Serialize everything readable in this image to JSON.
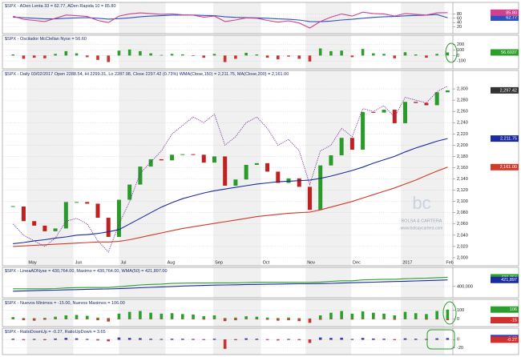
{
  "watermark": {
    "logo": "bc",
    "name": "BOLSA & CARTERA",
    "url": "www.bolsaycartera.com"
  },
  "chart_data": [
    {
      "type": "line",
      "title": "$SPX - ADen Lenta 33 = 62.77, ADen Rapida 10 = 85.80",
      "ylim": [
        0,
        100
      ],
      "yticks": [
        20,
        40,
        60,
        80
      ],
      "grid": true,
      "series": [
        {
          "kind": "line",
          "color": "#3050c0",
          "last_label": "62.77",
          "values": [
            65,
            63,
            60,
            57,
            57,
            60,
            62,
            63,
            60,
            56,
            58,
            62,
            67,
            70,
            72,
            74,
            75,
            75,
            73,
            72,
            67,
            64,
            63,
            62,
            60,
            57,
            55,
            52,
            45,
            44,
            47,
            52,
            55,
            60,
            64,
            67,
            68,
            71,
            73,
            74,
            77,
            62.77
          ]
        },
        {
          "kind": "line",
          "color": "#d04090",
          "last_label": "85.80",
          "values": [
            70,
            55,
            50,
            45,
            60,
            75,
            72,
            68,
            50,
            40,
            70,
            80,
            85,
            82,
            78,
            80,
            76,
            74,
            65,
            70,
            45,
            52,
            62,
            60,
            50,
            42,
            48,
            38,
            15,
            45,
            65,
            80,
            70,
            88,
            82,
            80,
            70,
            82,
            78,
            75,
            85,
            85.8
          ]
        }
      ]
    },
    {
      "type": "bar",
      "title": "$SPX - Oscilador McClellan Nyse = 56.60",
      "ylim": [
        -200,
        240
      ],
      "yticks": [
        -100,
        0,
        100,
        200
      ],
      "grid": true,
      "series": [
        {
          "kind": "bar",
          "color": "#2aa02a",
          "neg_color": "#d03030",
          "last_label": "56.6037",
          "values": [
            20,
            -60,
            -40,
            -50,
            30,
            80,
            40,
            -30,
            -80,
            -120,
            90,
            110,
            80,
            40,
            10,
            30,
            20,
            -10,
            -40,
            30,
            -120,
            -60,
            50,
            20,
            -40,
            -70,
            -20,
            -60,
            -110,
            130,
            80,
            90,
            -30,
            120,
            40,
            30,
            -50,
            60,
            20,
            -40,
            30,
            56.6
          ]
        }
      ]
    },
    {
      "type": "candlestick",
      "title": "$SPX - Daily 03/02/2017 Open 2288.54, Hi 2299.31, Lo 2287.98, Close 2297.42 (0.73%) WMA(Close,150) = 2,211.75, MA(Close,200) = 2,161.00",
      "up_color": "#2a9a2a",
      "down_color": "#c02020",
      "last_label": "2,297.42",
      "last_color": "#333",
      "values": [
        2091,
        2065,
        2057,
        2047,
        2052,
        2099,
        2099,
        2096,
        2071,
        2037,
        2103,
        2130,
        2162,
        2175,
        2173,
        2183,
        2184,
        2183,
        2169,
        2180,
        2128,
        2139,
        2165,
        2168,
        2153,
        2133,
        2141,
        2126,
        2085,
        2164,
        2182,
        2213,
        2192,
        2259,
        2258,
        2263,
        2239,
        2277,
        2275,
        2271,
        2294,
        2297.42
      ],
      "xlim": [
        -1,
        41.5
      ],
      "xticks": [
        {
          "value": 1.3,
          "label": "May"
        },
        {
          "value": 5.7,
          "label": "Jun"
        },
        {
          "value": 10,
          "label": "Jul"
        },
        {
          "value": 14.4,
          "label": "Aug"
        },
        {
          "value": 18.9,
          "label": "Sep"
        },
        {
          "value": 23.4,
          "label": "Oct"
        },
        {
          "value": 27.6,
          "label": "Nov"
        },
        {
          "value": 31.9,
          "label": "Dec"
        },
        {
          "value": 36.6,
          "label": "2017"
        },
        {
          "value": 40.7,
          "label": "Feb"
        }
      ],
      "ylim": [
        1990,
        2320
      ],
      "yticks": [
        {
          "value": 2000,
          "label": "2,000"
        },
        {
          "value": 2020,
          "label": "2,020"
        },
        {
          "value": 2040,
          "label": "2,040"
        },
        {
          "value": 2060,
          "label": "2,060"
        },
        {
          "value": 2080,
          "label": "2,080"
        },
        {
          "value": 2100,
          "label": "2,100"
        },
        {
          "value": 2120,
          "label": "2,120"
        },
        {
          "value": 2140,
          "label": "2,140"
        },
        {
          "value": 2160,
          "label": "2,160"
        },
        {
          "value": 2180,
          "label": "2,180"
        },
        {
          "value": 2200,
          "label": "2,200"
        },
        {
          "value": 2220,
          "label": "2,220"
        },
        {
          "value": 2240,
          "label": "2,240"
        },
        {
          "value": 2260,
          "label": "2,260"
        },
        {
          "value": 2280,
          "label": "2,280"
        },
        {
          "value": 2300,
          "label": "2,300"
        }
      ],
      "grid": true,
      "series": [
        {
          "kind": "dotted",
          "color": "#7a2a9a",
          "values": [
            2060,
            2040,
            2030,
            2020,
            2035,
            2065,
            2070,
            2060,
            2030,
            2010,
            2060,
            2100,
            2150,
            2170,
            2190,
            2220,
            2235,
            2250,
            2240,
            2255,
            2200,
            2215,
            2240,
            2250,
            2230,
            2200,
            2210,
            2190,
            2130,
            2190,
            2200,
            2230,
            2215,
            2265,
            2260,
            2270,
            2250,
            2285,
            2280,
            2275,
            2295,
            2305
          ]
        },
        {
          "kind": "line",
          "color": "#1a2aa0",
          "last_label": "2,211.75",
          "values": [
            2025,
            2027,
            2030,
            2032,
            2035,
            2037,
            2040,
            2041,
            2043,
            2046,
            2050,
            2060,
            2070,
            2080,
            2090,
            2098,
            2105,
            2110,
            2115,
            2119,
            2122,
            2125,
            2128,
            2131,
            2133,
            2135,
            2136,
            2137,
            2138,
            2141,
            2145,
            2150,
            2155,
            2161,
            2168,
            2174,
            2180,
            2188,
            2195,
            2201,
            2207,
            2211.75
          ]
        },
        {
          "kind": "line",
          "color": "#d03a2a",
          "last_label": "2,161.00",
          "values": [
            2020,
            2021,
            2022,
            2023,
            2024,
            2025,
            2026,
            2027,
            2028,
            2028,
            2029,
            2032,
            2036,
            2040,
            2044,
            2048,
            2052,
            2055,
            2058,
            2061,
            2064,
            2067,
            2070,
            2073,
            2075,
            2077,
            2079,
            2080,
            2081,
            2085,
            2090,
            2095,
            2100,
            2106,
            2112,
            2118,
            2124,
            2131,
            2138,
            2146,
            2154,
            2161
          ]
        }
      ]
    },
    {
      "type": "line",
      "title": "$SPX - LineaADNyse = 430,764.00, Maximo = 430,764.00, WMA(50) = 421,897.00",
      "ylim": [
        370000,
        440000
      ],
      "yticks": [
        {
          "value": 400000,
          "label": "400,000"
        }
      ],
      "grid": true,
      "series": [
        {
          "kind": "line",
          "color": "#2aa02a",
          "last_label": "430,764",
          "values": [
            392000,
            392000,
            392000,
            392000,
            393000,
            395000,
            396000,
            396500,
            396500,
            396500,
            399000,
            402000,
            405000,
            407000,
            408000,
            410000,
            411000,
            411500,
            411500,
            412000,
            412000,
            412000,
            413000,
            414000,
            414000,
            414000,
            414000,
            414000,
            414000,
            415000,
            417000,
            419000,
            419000,
            422000,
            423000,
            424000,
            424000,
            426000,
            427000,
            427500,
            429500,
            430764
          ]
        },
        {
          "kind": "line",
          "color": "#1a2aa0",
          "last_label": "421,897",
          "values": [
            384000,
            385000,
            386000,
            387000,
            387500,
            388500,
            389500,
            390500,
            391000,
            391500,
            392500,
            394000,
            395500,
            397000,
            398500,
            400000,
            401500,
            402500,
            403500,
            404500,
            405000,
            405500,
            406500,
            407000,
            407500,
            408000,
            408500,
            409000,
            409000,
            409500,
            410500,
            411500,
            412500,
            413500,
            414500,
            415500,
            416500,
            417500,
            418500,
            419500,
            420700,
            421897
          ]
        }
      ]
    },
    {
      "type": "bar",
      "title": "$SPX - Nuevos Minimos = -15.00, Nuevos Maximos = 106.00",
      "ylim": [
        -60,
        140
      ],
      "yticks": [
        0,
        100
      ],
      "grid": true,
      "series": [
        {
          "kind": "bar",
          "color": "#2aa02a",
          "last_label": "106",
          "values": [
            20,
            10,
            8,
            12,
            25,
            40,
            45,
            35,
            15,
            10,
            60,
            80,
            90,
            70,
            60,
            65,
            55,
            50,
            30,
            40,
            10,
            15,
            30,
            25,
            15,
            10,
            15,
            8,
            5,
            40,
            70,
            90,
            60,
            85,
            70,
            60,
            40,
            80,
            65,
            55,
            90,
            106
          ]
        },
        {
          "kind": "bar",
          "color": "#d03030",
          "last_label": "-15",
          "values": [
            -5,
            -15,
            -20,
            -10,
            -5,
            -3,
            -2,
            -5,
            -15,
            -30,
            -5,
            -2,
            -1,
            -2,
            -3,
            -2,
            -3,
            -5,
            -8,
            -4,
            -25,
            -15,
            -5,
            -6,
            -10,
            -20,
            -15,
            -25,
            -45,
            -10,
            -5,
            -3,
            -8,
            -2,
            -3,
            -5,
            -10,
            -3,
            -5,
            -8,
            -6,
            -15
          ]
        }
      ]
    },
    {
      "type": "bar",
      "title": "$SPX - RatioDownUp = -0.27, RatioUpDown = 3.65",
      "ylim": [
        -30,
        10
      ],
      "yticks": [
        0,
        -20
      ],
      "grid": true,
      "series": [
        {
          "kind": "bar",
          "color": "#2a40c0",
          "last_label": "3.65",
          "values": [
            2,
            1,
            1.5,
            1,
            2.5,
            4,
            3,
            1.5,
            1,
            0.8,
            5,
            4,
            3.5,
            2,
            1.5,
            2,
            2,
            1.5,
            1,
            2,
            0.5,
            1,
            3,
            2,
            1,
            0.8,
            1.5,
            1,
            0.5,
            5,
            4,
            4.5,
            1.5,
            4,
            2.5,
            2,
            1,
            3,
            2,
            1.5,
            3,
            3.65
          ]
        },
        {
          "kind": "bar",
          "color": "#d03030",
          "last_label": "-0.27",
          "values": [
            -0.5,
            -1.5,
            -1,
            -1.5,
            -0.4,
            -0.3,
            -0.4,
            -1,
            -2,
            -4,
            -0.3,
            -0.3,
            -0.3,
            -0.5,
            -0.6,
            -0.4,
            -0.5,
            -0.7,
            -1.2,
            -0.5,
            -22,
            -1.5,
            -0.4,
            -0.5,
            -1.2,
            -2,
            -0.8,
            -1.5,
            -8,
            -0.3,
            -0.3,
            -0.3,
            -1,
            -0.3,
            -0.5,
            -0.6,
            -1.4,
            -0.4,
            -0.6,
            -1,
            -0.5,
            -0.27
          ]
        }
      ]
    }
  ]
}
